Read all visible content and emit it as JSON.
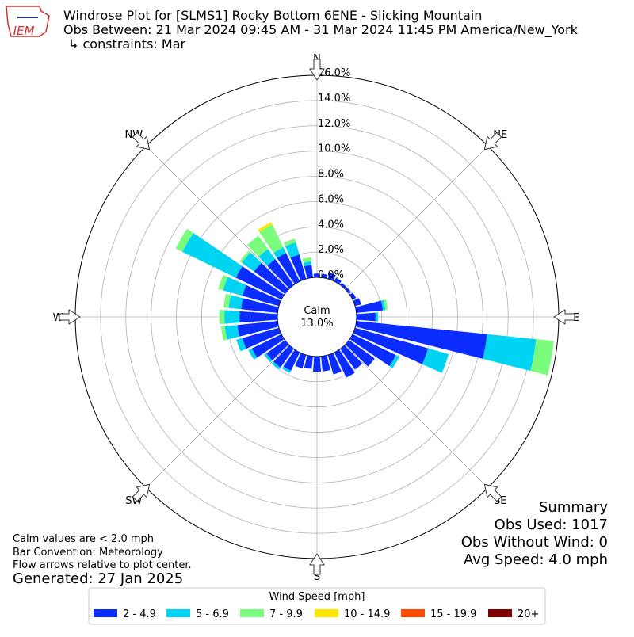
{
  "chart_data": {
    "type": "windrose",
    "title": "Windrose Plot for [SLMS1] Rocky Bottom 6ENE - Slicking Mountain",
    "subtitle": "Obs Between: 21 Mar 2024 09:45 AM - 31 Mar 2024 11:45 PM America/New_York",
    "constraints": "↳ constraints: Mar",
    "logo_text": "IEM",
    "x": [
      0,
      10,
      20,
      30,
      40,
      50,
      60,
      70,
      80,
      90,
      100,
      110,
      120,
      130,
      140,
      150,
      160,
      170,
      180,
      190,
      200,
      210,
      220,
      230,
      240,
      250,
      260,
      270,
      280,
      290,
      300,
      310,
      320,
      330,
      340,
      350
    ],
    "compass_labels": [
      "N",
      "NE",
      "E",
      "SE",
      "S",
      "SW",
      "W",
      "NW"
    ],
    "ylim": [
      0,
      16
    ],
    "yticks": [
      {
        "value": 0,
        "label": "0.0%"
      },
      {
        "value": 2,
        "label": "2.0%"
      },
      {
        "value": 4,
        "label": "4.0%"
      },
      {
        "value": 6,
        "label": "6.0%"
      },
      {
        "value": 8,
        "label": "8.0%"
      },
      {
        "value": 10,
        "label": "10.0%"
      },
      {
        "value": 12,
        "label": "12.0%"
      },
      {
        "value": 14,
        "label": "14.0%"
      },
      {
        "value": 16,
        "label": "16.0%"
      }
    ],
    "grid": true,
    "calm_label": "Calm",
    "calm_text": "13.0%",
    "legend_title": "Wind Speed [mph]",
    "series": [
      {
        "name": "2 - 4.9",
        "color": "#0a2cff",
        "values": [
          0.3,
          0.3,
          0.5,
          0.3,
          0.2,
          0.2,
          0.3,
          0.5,
          2.1,
          1.5,
          10.4,
          6.0,
          3.8,
          2.5,
          2.0,
          2.2,
          1.6,
          1.2,
          1.2,
          1.0,
          1.1,
          1.6,
          1.8,
          1.8,
          2.6,
          3.0,
          3.2,
          3.0,
          2.9,
          3.0,
          4.0,
          3.0,
          2.5,
          2.5,
          2.0,
          1.0
        ]
      },
      {
        "name": "5 - 6.9",
        "color": "#00d4f2",
        "values": [
          0,
          0,
          0,
          0,
          0,
          0,
          0,
          0,
          0.2,
          0.2,
          3.9,
          1.7,
          0.3,
          0,
          0,
          0,
          0,
          0,
          0,
          0,
          0,
          0.2,
          0.2,
          0.2,
          0.3,
          0.5,
          1.0,
          1.2,
          1.0,
          1.6,
          4.7,
          1.2,
          1.0,
          0.5,
          1.0,
          0.3
        ]
      },
      {
        "name": "7 - 9.9",
        "color": "#7cfc7c",
        "values": [
          0,
          0,
          0,
          0,
          0,
          0,
          0,
          0,
          0.2,
          0,
          1.4,
          0,
          0,
          0,
          0,
          0,
          0,
          0,
          0,
          0,
          0,
          0,
          0,
          0,
          0,
          0,
          0.3,
          0.4,
          0.4,
          0.4,
          0.6,
          0.2,
          1.3,
          2.0,
          0.3,
          0.3
        ]
      },
      {
        "name": "10 - 14.9",
        "color": "#ffe500",
        "values": [
          0,
          0,
          0,
          0,
          0,
          0,
          0,
          0,
          0,
          0,
          0,
          0,
          0,
          0,
          0,
          0,
          0,
          0,
          0,
          0,
          0,
          0,
          0,
          0,
          0,
          0,
          0,
          0,
          0,
          0,
          0,
          0,
          0,
          0.2,
          0,
          0
        ]
      },
      {
        "name": "15 - 19.9",
        "color": "#ff4a00",
        "values": [
          0,
          0,
          0,
          0,
          0,
          0,
          0,
          0,
          0,
          0,
          0,
          0,
          0,
          0,
          0,
          0,
          0,
          0,
          0,
          0,
          0,
          0,
          0,
          0,
          0,
          0,
          0,
          0,
          0,
          0,
          0,
          0,
          0,
          0,
          0,
          0
        ]
      },
      {
        "name": "20+",
        "color": "#7f0000",
        "values": [
          0,
          0,
          0,
          0,
          0,
          0,
          0,
          0,
          0,
          0,
          0,
          0,
          0,
          0,
          0,
          0,
          0,
          0,
          0,
          0,
          0,
          0,
          0,
          0,
          0,
          0,
          0,
          0,
          0,
          0,
          0,
          0,
          0,
          0,
          0,
          0
        ]
      }
    ],
    "notes": [
      "Calm values are < 2.0 mph",
      "Bar Convention: Meteorology",
      "Flow arrows relative to plot center."
    ],
    "generated": "Generated: 27 Jan 2025",
    "summary": [
      "Summary",
      "Obs Used: 1017",
      "Obs Without Wind: 0",
      "Avg Speed: 4.0 mph"
    ]
  }
}
